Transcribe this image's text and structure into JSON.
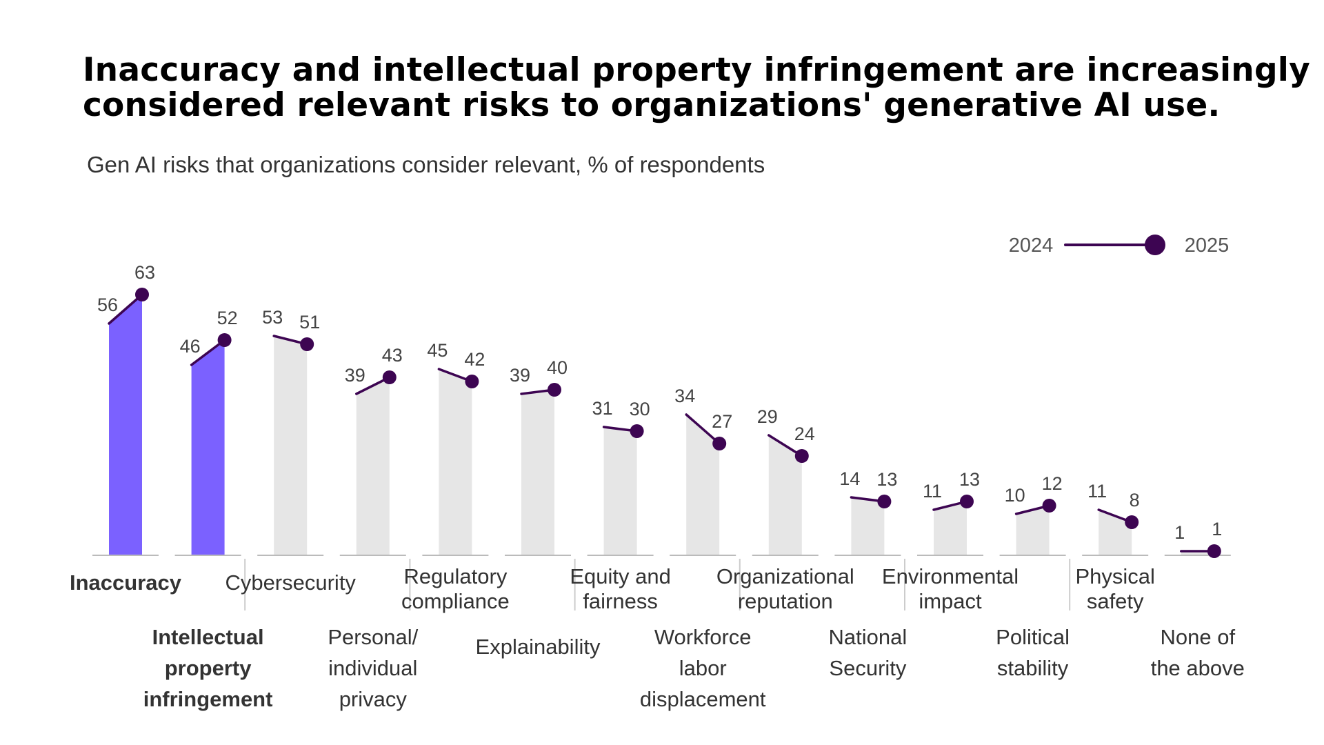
{
  "title": {
    "line1": "Inaccuracy and intellectual property infringement are increasingly",
    "line2": "considered relevant risks to organizations' generative AI use."
  },
  "subtitle": "Gen AI risks that organizations consider relevant, % of respondents",
  "colors": {
    "highlight_bar": "#7B61FF",
    "bar": "#E6E6E6",
    "line": "#3D0552",
    "axis": "#BBBBBB"
  },
  "chart_data": {
    "type": "bar",
    "legend": {
      "from": "2024",
      "to": "2025",
      "position": "top-right"
    },
    "categories": [
      "Inaccuracy",
      "Intellectual property infringement",
      "Cybersecurity",
      "Personal/ individual privacy",
      "Regulatory compliance",
      "Explainability",
      "Equity and fairness",
      "Workforce labor displacement",
      "Organizational reputation",
      "National Security",
      "Environmental impact",
      "Political stability",
      "Physical safety",
      "None of the above"
    ],
    "series": [
      {
        "name": "2024",
        "values": [
          56,
          46,
          53,
          39,
          45,
          39,
          31,
          34,
          29,
          14,
          11,
          10,
          11,
          1
        ]
      },
      {
        "name": "2025",
        "values": [
          63,
          52,
          51,
          43,
          42,
          40,
          30,
          27,
          24,
          13,
          13,
          12,
          8,
          1
        ]
      }
    ],
    "highlighted": [
      "Inaccuracy",
      "Intellectual property infringement"
    ],
    "label_lines": [
      [
        "Inaccuracy"
      ],
      [
        "Intellectual",
        "property",
        "infringement"
      ],
      [
        "Cybersecurity"
      ],
      [
        "Personal/",
        "individual",
        "privacy"
      ],
      [
        "Regulatory",
        "compliance"
      ],
      [
        "Explainability"
      ],
      [
        "Equity and",
        "fairness"
      ],
      [
        "Workforce",
        "labor",
        "displacement"
      ],
      [
        "Organizational",
        "reputation"
      ],
      [
        "National",
        "Security"
      ],
      [
        "Environmental",
        "impact"
      ],
      [
        "Political",
        "stability"
      ],
      [
        "Physical",
        "safety"
      ],
      [
        "None of",
        "the above"
      ]
    ],
    "ylim": [
      0,
      70
    ]
  }
}
